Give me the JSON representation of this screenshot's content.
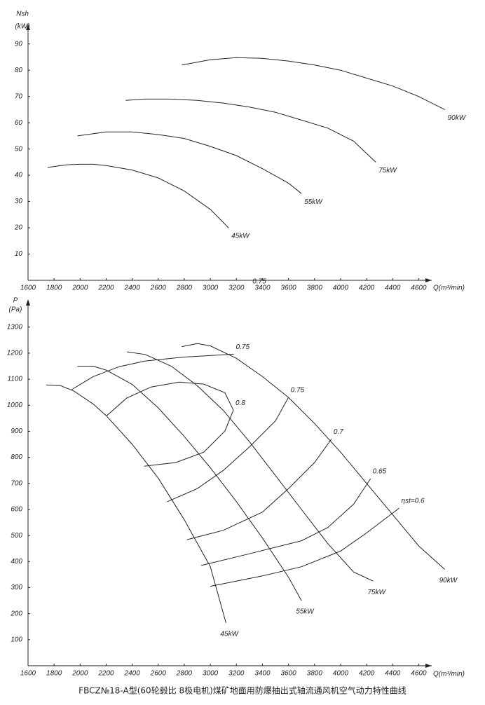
{
  "chart_data": [
    {
      "type": "line",
      "ylabel": "Nsh",
      "ylabel_unit": "(kW)",
      "xlabel": "Q(m³/min)",
      "xlim": [
        1600,
        4700
      ],
      "ylim": [
        0,
        95
      ],
      "xticks": [
        1600,
        1800,
        2000,
        2200,
        2400,
        2600,
        2800,
        3000,
        3200,
        3400,
        3600,
        3800,
        4000,
        4200,
        4400,
        4600
      ],
      "yticks": [
        10,
        20,
        30,
        40,
        50,
        60,
        70,
        80,
        90
      ],
      "color": "#222",
      "annotations": [
        "0.75"
      ],
      "series": [
        {
          "name": "45kW",
          "x": [
            1750,
            1900,
            2000,
            2100,
            2200,
            2400,
            2600,
            2800,
            3000,
            3140
          ],
          "values": [
            43,
            44,
            44.2,
            44.2,
            43.7,
            42,
            39,
            34,
            27,
            20
          ]
        },
        {
          "name": "55kW",
          "x": [
            1980,
            2200,
            2400,
            2600,
            2800,
            3000,
            3200,
            3400,
            3600,
            3700
          ],
          "values": [
            55,
            56.5,
            56.5,
            55.5,
            54,
            51,
            47.5,
            42.5,
            37,
            33
          ]
        },
        {
          "name": "75kW",
          "x": [
            2350,
            2500,
            2700,
            2900,
            3100,
            3300,
            3500,
            3700,
            3900,
            4100,
            4270
          ],
          "values": [
            68.5,
            69,
            69,
            68.5,
            67.5,
            66,
            64,
            61,
            58,
            53,
            45
          ]
        },
        {
          "name": "90kW",
          "x": [
            2780,
            3000,
            3200,
            3400,
            3600,
            3800,
            4000,
            4200,
            4400,
            4600,
            4800
          ],
          "values": [
            82,
            84,
            84.8,
            84.5,
            83.5,
            82,
            80,
            77,
            74,
            70,
            65
          ]
        }
      ]
    },
    {
      "type": "line",
      "ylabel": "P",
      "ylabel_unit": "(Pa)",
      "xlabel": "Q(m³/min)",
      "xlim": [
        1600,
        4700
      ],
      "ylim": [
        0,
        1380
      ],
      "xticks": [
        1600,
        1800,
        2000,
        2200,
        2400,
        2600,
        2800,
        3000,
        3200,
        3400,
        3600,
        3800,
        4000,
        4200,
        4400,
        4600
      ],
      "yticks": [
        100,
        200,
        300,
        400,
        500,
        600,
        700,
        800,
        900,
        1000,
        1100,
        1200,
        1300
      ],
      "color": "#222",
      "series": [
        {
          "name": "45kW",
          "x": [
            1740,
            1850,
            1950,
            2100,
            2200,
            2400,
            2600,
            2800,
            3000,
            3120
          ],
          "values": [
            1078,
            1075,
            1055,
            1005,
            960,
            850,
            720,
            560,
            380,
            165
          ]
        },
        {
          "name": "55kW",
          "x": [
            1980,
            2100,
            2200,
            2400,
            2600,
            2800,
            3000,
            3200,
            3400,
            3600,
            3700
          ],
          "values": [
            1150,
            1150,
            1135,
            1080,
            990,
            880,
            760,
            630,
            490,
            340,
            250
          ]
        },
        {
          "name": "75kW",
          "x": [
            2360,
            2500,
            2700,
            2900,
            3100,
            3300,
            3500,
            3700,
            3900,
            4100,
            4250
          ],
          "values": [
            1205,
            1195,
            1150,
            1075,
            980,
            860,
            730,
            600,
            470,
            360,
            325
          ]
        },
        {
          "name": "90kW",
          "x": [
            2780,
            2900,
            3000,
            3200,
            3400,
            3600,
            3800,
            4000,
            4200,
            4400,
            4600,
            4800
          ],
          "values": [
            1225,
            1237,
            1228,
            1180,
            1110,
            1030,
            930,
            820,
            700,
            580,
            460,
            370
          ]
        },
        {
          "name": "ηst=0.6",
          "x": [
            3000,
            3400,
            3700,
            4000,
            4200,
            4450
          ],
          "values": [
            305,
            345,
            380,
            440,
            510,
            605
          ]
        },
        {
          "name": "0.65",
          "x": [
            2930,
            3300,
            3700,
            3900,
            4100,
            4230
          ],
          "values": [
            385,
            430,
            480,
            530,
            620,
            718
          ]
        },
        {
          "name": "0.7",
          "x": [
            2820,
            3100,
            3400,
            3600,
            3800,
            3930
          ],
          "values": [
            484,
            520,
            590,
            680,
            780,
            870
          ]
        },
        {
          "name": "0.75",
          "x": [
            2670,
            2900,
            3100,
            3300,
            3500,
            3600
          ],
          "values": [
            630,
            680,
            750,
            840,
            940,
            1030
          ]
        },
        {
          "name": "0.8",
          "x": [
            2491,
            2734,
            2950,
            3112,
            3177,
            3112,
            2950,
            2761,
            2545,
            2356,
            2205
          ],
          "values": [
            766,
            780,
            820,
            901,
            981,
            1048,
            1081,
            1089,
            1070,
            1027,
            960
          ]
        },
        {
          "name": "0.75",
          "x": [
            1935,
            2100,
            2300,
            2500,
            2800,
            3180
          ],
          "values": [
            1060,
            1110,
            1148,
            1170,
            1185,
            1196
          ]
        }
      ]
    }
  ],
  "caption": "FBCZ№18-A型(60轮毂比 8极电机)煤矿地面用防爆抽出式轴流通风机空气动力特性曲线"
}
